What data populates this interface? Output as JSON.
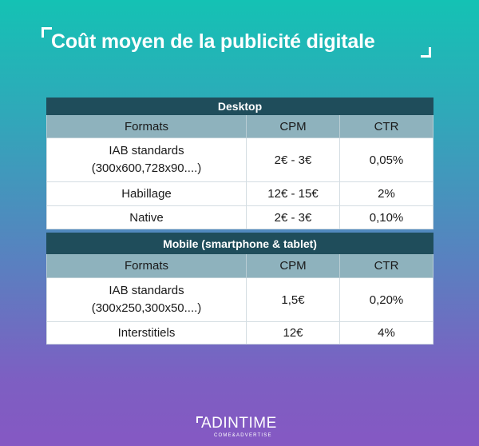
{
  "title": "Coût moyen de la publicité digitale",
  "desktop": {
    "section_label": "Desktop",
    "headers": [
      "Formats",
      "CPM",
      "CTR"
    ],
    "rows": [
      {
        "format_line1": "IAB standards",
        "format_line2": "(300x600,728x90....)",
        "cpm": "2€ - 3€",
        "ctr": "0,05%"
      },
      {
        "format_line1": "Habillage",
        "format_line2": "",
        "cpm": "12€ - 15€",
        "ctr": "2%"
      },
      {
        "format_line1": "Native",
        "format_line2": "",
        "cpm": "2€ - 3€",
        "ctr": "0,10%"
      }
    ]
  },
  "mobile": {
    "section_label": "Mobile (smartphone & tablet)",
    "headers": [
      "Formats",
      "CPM",
      "CTR"
    ],
    "rows": [
      {
        "format_line1": "IAB standards",
        "format_line2": "(300x250,300x50....)",
        "cpm": "1,5€",
        "ctr": "0,20%"
      },
      {
        "format_line1": "Interstitiels",
        "format_line2": "",
        "cpm": "12€",
        "ctr": "4%"
      }
    ]
  },
  "logo": {
    "name": "ADINTIME",
    "tagline": "COME&ADVERTISE"
  }
}
